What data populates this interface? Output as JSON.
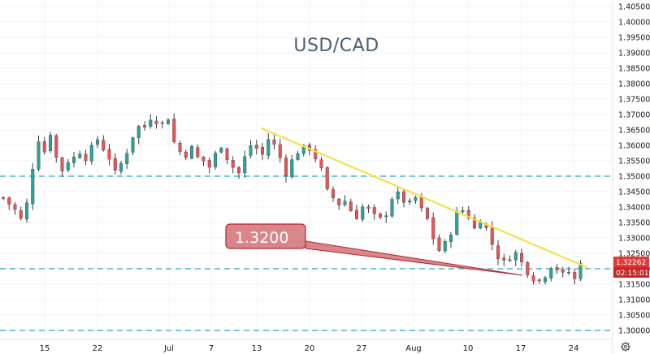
{
  "chart_data": {
    "type": "candlestick",
    "title": "USD/CAD",
    "ylim": [
      1.2955,
      1.4095
    ],
    "y_ticks": [
      "1.40500",
      "1.40000",
      "1.39500",
      "1.39000",
      "1.38500",
      "1.38000",
      "1.37500",
      "1.37000",
      "1.36500",
      "1.36000",
      "1.35500",
      "1.35000",
      "1.34500",
      "1.34000",
      "1.33500",
      "1.33000",
      "1.32500",
      "1.32000",
      "1.31500",
      "1.31000",
      "1.30500",
      "1.30000"
    ],
    "x_ticks": [
      "15",
      "22",
      "Jul",
      "7",
      "13",
      "20",
      "27",
      "Aug",
      "10",
      "17",
      "24"
    ],
    "price_path": [
      [
        0,
        1.343
      ],
      [
        2,
        1.339
      ],
      [
        3,
        1.336
      ],
      [
        4,
        1.341
      ],
      [
        5,
        1.353
      ],
      [
        6,
        1.362
      ],
      [
        7,
        1.358
      ],
      [
        8,
        1.364
      ],
      [
        9,
        1.356
      ],
      [
        10,
        1.352
      ],
      [
        11,
        1.355
      ],
      [
        12,
        1.356
      ],
      [
        13,
        1.358
      ],
      [
        14,
        1.356
      ],
      [
        15,
        1.359
      ],
      [
        16,
        1.362
      ],
      [
        17,
        1.359
      ],
      [
        18,
        1.356
      ],
      [
        19,
        1.351
      ],
      [
        20,
        1.354
      ],
      [
        21,
        1.358
      ],
      [
        22,
        1.363
      ],
      [
        23,
        1.366
      ],
      [
        24,
        1.366
      ],
      [
        25,
        1.369
      ],
      [
        26,
        1.368
      ],
      [
        27,
        1.367
      ],
      [
        28,
        1.369
      ],
      [
        29,
        1.361
      ],
      [
        30,
        1.358
      ],
      [
        31,
        1.357
      ],
      [
        32,
        1.359
      ],
      [
        33,
        1.356
      ],
      [
        34,
        1.355
      ],
      [
        35,
        1.353
      ],
      [
        36,
        1.357
      ],
      [
        37,
        1.36
      ],
      [
        38,
        1.356
      ],
      [
        39,
        1.353
      ],
      [
        40,
        1.351
      ],
      [
        41,
        1.356
      ],
      [
        42,
        1.36
      ],
      [
        43,
        1.359
      ],
      [
        44,
        1.357
      ],
      [
        45,
        1.362
      ],
      [
        46,
        1.36
      ],
      [
        47,
        1.356
      ],
      [
        48,
        1.351
      ],
      [
        49,
        1.355
      ],
      [
        50,
        1.358
      ],
      [
        51,
        1.359
      ],
      [
        52,
        1.359
      ],
      [
        53,
        1.356
      ],
      [
        54,
        1.352
      ],
      [
        55,
        1.345
      ],
      [
        56,
        1.343
      ],
      [
        57,
        1.341
      ],
      [
        58,
        1.342
      ],
      [
        59,
        1.339
      ],
      [
        60,
        1.337
      ],
      [
        61,
        1.34
      ],
      [
        62,
        1.339
      ],
      [
        63,
        1.337
      ],
      [
        64,
        1.336
      ],
      [
        65,
        1.338
      ],
      [
        66,
        1.343
      ],
      [
        67,
        1.344
      ],
      [
        68,
        1.342
      ],
      [
        69,
        1.341
      ],
      [
        70,
        1.343
      ],
      [
        71,
        1.339
      ],
      [
        72,
        1.336
      ],
      [
        73,
        1.33
      ],
      [
        74,
        1.326
      ],
      [
        75,
        1.328
      ],
      [
        76,
        1.332
      ],
      [
        77,
        1.338
      ],
      [
        78,
        1.339
      ],
      [
        79,
        1.337
      ],
      [
        80,
        1.333
      ],
      [
        81,
        1.336
      ],
      [
        82,
        1.333
      ],
      [
        83,
        1.328
      ],
      [
        84,
        1.324
      ],
      [
        85,
        1.322
      ],
      [
        86,
        1.324
      ],
      [
        87,
        1.325
      ],
      [
        88,
        1.322
      ],
      [
        89,
        1.319
      ],
      [
        90,
        1.317
      ],
      [
        91,
        1.316
      ],
      [
        92,
        1.318
      ],
      [
        93,
        1.321
      ],
      [
        94,
        1.32
      ],
      [
        95,
        1.318
      ],
      [
        96,
        1.319
      ],
      [
        97,
        1.3165
      ],
      [
        98,
        1.3226
      ]
    ],
    "horizontal_levels": [
      1.35,
      1.32,
      1.3
    ],
    "trendline": {
      "from": [
        1.3655
      ],
      "to": [
        1.3205
      ]
    },
    "callout": {
      "label": "1.3200"
    },
    "price_badge": {
      "value": "1.32262",
      "countdown": "02:15:01"
    },
    "colors": {
      "up": "#26a69a",
      "down": "#ef5350",
      "wick": "#3a3e47",
      "trend": "#f5e04b",
      "levels": "#4bb5c9",
      "callout_fill": "#d9858a",
      "callout_stroke": "#b02a30",
      "badge_price": "#e53935",
      "badge_time": "#c62828",
      "title": "#4a5f74"
    }
  },
  "ui": {
    "settings_icon": "gear-icon"
  }
}
